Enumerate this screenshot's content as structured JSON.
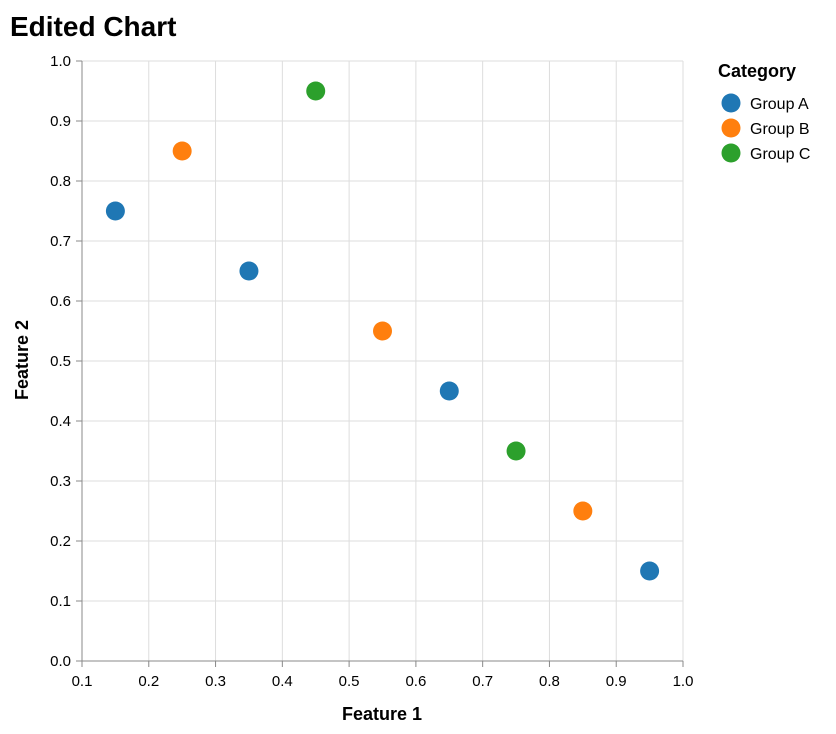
{
  "chart_data": {
    "type": "scatter",
    "title": "Edited Chart",
    "xlabel": "Feature 1",
    "ylabel": "Feature 2",
    "xlim": [
      0.1,
      1.0
    ],
    "ylim": [
      0.0,
      1.0
    ],
    "x_ticks": [
      "0.1",
      "0.2",
      "0.3",
      "0.4",
      "0.5",
      "0.6",
      "0.7",
      "0.8",
      "0.9",
      "1.0"
    ],
    "y_ticks": [
      "0.0",
      "0.1",
      "0.2",
      "0.3",
      "0.4",
      "0.5",
      "0.6",
      "0.7",
      "0.8",
      "0.9",
      "1.0"
    ],
    "grid": true,
    "legend": {
      "title": "Category",
      "placement": "top-right",
      "entries": [
        {
          "name": "Group A",
          "color": "#1f77b4"
        },
        {
          "name": "Group B",
          "color": "#ff7f0e"
        },
        {
          "name": "Group C",
          "color": "#2ca02c"
        }
      ]
    },
    "points": [
      {
        "x": 0.15,
        "y": 0.75,
        "category": "Group A"
      },
      {
        "x": 0.25,
        "y": 0.85,
        "category": "Group B"
      },
      {
        "x": 0.35,
        "y": 0.65,
        "category": "Group A"
      },
      {
        "x": 0.45,
        "y": 0.95,
        "category": "Group C"
      },
      {
        "x": 0.55,
        "y": 0.55,
        "category": "Group B"
      },
      {
        "x": 0.65,
        "y": 0.45,
        "category": "Group A"
      },
      {
        "x": 0.75,
        "y": 0.35,
        "category": "Group C"
      },
      {
        "x": 0.85,
        "y": 0.25,
        "category": "Group B"
      },
      {
        "x": 0.95,
        "y": 0.15,
        "category": "Group A"
      }
    ]
  }
}
